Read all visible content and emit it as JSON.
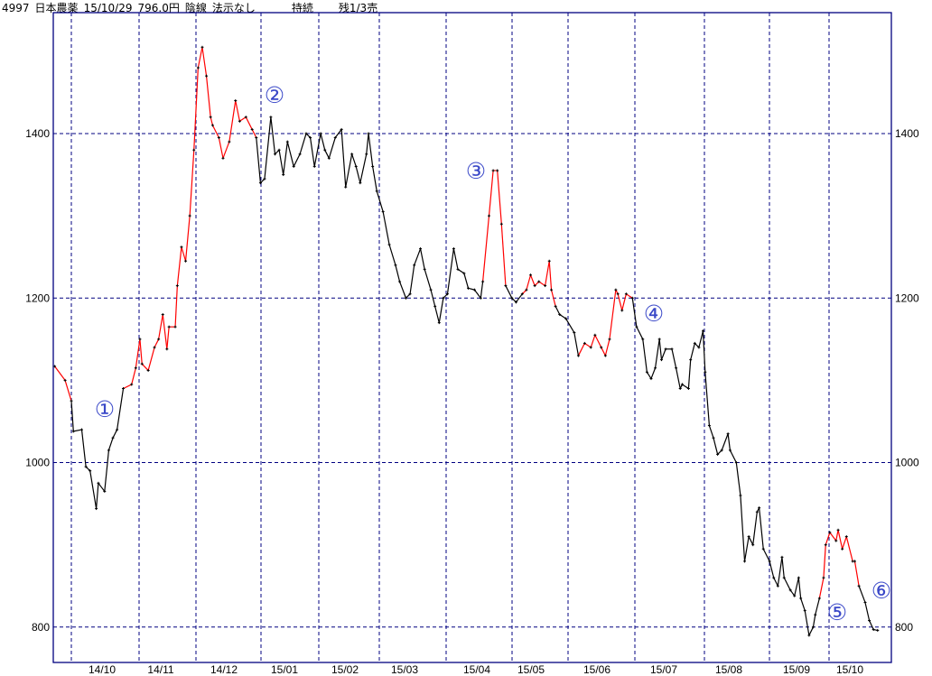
{
  "header": {
    "code": "4997",
    "name": "日本農薬",
    "date": "15/10/29",
    "price": "796.0円",
    "candle": "陰線",
    "disclosure": "法示なし",
    "status": "持続",
    "remaining": "残1/3売"
  },
  "chart_data": {
    "type": "line",
    "title": "",
    "xlabel": "",
    "ylabel": "",
    "ylim": [
      757,
      1547
    ],
    "y_ticks": [
      800,
      1000,
      1200,
      1400
    ],
    "y_axis_sides": "left-and-right",
    "x_tick_labels": [
      "14/10",
      "14/11",
      "14/12",
      "15/01",
      "15/02",
      "15/03",
      "15/04",
      "15/05",
      "15/06",
      "15/07",
      "15/08",
      "15/09",
      "15/10"
    ],
    "grid": true,
    "grid_style": "dashed",
    "colors": {
      "frame": "#000080",
      "grid": "#000080",
      "line": "#000000",
      "highlight": "#ff0000",
      "annotation": "#3a48c8"
    },
    "highlight_ranges": [
      [
        "2014-09-23",
        "2014-10-01"
      ],
      [
        "2014-10-26",
        "2014-12-29"
      ],
      [
        "2015-04-17",
        "2015-04-28"
      ],
      [
        "2015-05-06",
        "2015-05-22"
      ],
      [
        "2015-06-02",
        "2015-06-28"
      ],
      [
        "2015-09-26",
        "2015-10-15"
      ]
    ],
    "annotations": [
      "①",
      "②",
      "③",
      "④",
      "⑤",
      "⑥"
    ],
    "points": [
      [
        "2014-09-23",
        1117
      ],
      [
        "2014-09-28",
        1100
      ],
      [
        "2014-10-01",
        1075
      ],
      [
        "2014-10-02",
        1038
      ],
      [
        "2014-10-06",
        1040
      ],
      [
        "2014-10-08",
        995
      ],
      [
        "2014-10-10",
        990
      ],
      [
        "2014-10-13",
        944
      ],
      [
        "2014-10-14",
        975
      ],
      [
        "2014-10-17",
        965
      ],
      [
        "2014-10-19",
        1015
      ],
      [
        "2014-10-21",
        1030
      ],
      [
        "2014-10-23",
        1040
      ],
      [
        "2014-10-26",
        1090
      ],
      [
        "2014-10-30",
        1095
      ],
      [
        "2014-11-01",
        1115
      ],
      [
        "2014-11-03",
        1150
      ],
      [
        "2014-11-04",
        1120
      ],
      [
        "2014-11-07",
        1112
      ],
      [
        "2014-11-10",
        1140
      ],
      [
        "2014-11-12",
        1150
      ],
      [
        "2014-11-14",
        1180
      ],
      [
        "2014-11-16",
        1138
      ],
      [
        "2014-11-17",
        1165
      ],
      [
        "2014-11-20",
        1165
      ],
      [
        "2014-11-21",
        1215
      ],
      [
        "2014-11-23",
        1262
      ],
      [
        "2014-11-25",
        1245
      ],
      [
        "2014-11-27",
        1300
      ],
      [
        "2014-11-29",
        1380
      ],
      [
        "2014-12-01",
        1480
      ],
      [
        "2014-12-03",
        1505
      ],
      [
        "2014-12-05",
        1470
      ],
      [
        "2014-12-07",
        1420
      ],
      [
        "2014-12-08",
        1410
      ],
      [
        "2014-12-11",
        1395
      ],
      [
        "2014-12-13",
        1370
      ],
      [
        "2014-12-16",
        1390
      ],
      [
        "2014-12-19",
        1440
      ],
      [
        "2014-12-21",
        1415
      ],
      [
        "2014-12-24",
        1420
      ],
      [
        "2014-12-27",
        1405
      ],
      [
        "2014-12-29",
        1395
      ],
      [
        "2014-12-31",
        1340
      ],
      [
        "2015-01-02",
        1345
      ],
      [
        "2015-01-05",
        1420
      ],
      [
        "2015-01-07",
        1375
      ],
      [
        "2015-01-09",
        1380
      ],
      [
        "2015-01-11",
        1350
      ],
      [
        "2015-01-13",
        1390
      ],
      [
        "2015-01-16",
        1360
      ],
      [
        "2015-01-19",
        1375
      ],
      [
        "2015-01-22",
        1400
      ],
      [
        "2015-01-24",
        1395
      ],
      [
        "2015-01-26",
        1360
      ],
      [
        "2015-01-29",
        1400
      ],
      [
        "2015-01-31",
        1380
      ],
      [
        "2015-02-02",
        1370
      ],
      [
        "2015-02-05",
        1395
      ],
      [
        "2015-02-08",
        1405
      ],
      [
        "2015-02-10",
        1335
      ],
      [
        "2015-02-13",
        1375
      ],
      [
        "2015-02-15",
        1360
      ],
      [
        "2015-02-17",
        1340
      ],
      [
        "2015-02-20",
        1375
      ],
      [
        "2015-02-21",
        1400
      ],
      [
        "2015-02-23",
        1360
      ],
      [
        "2015-02-25",
        1330
      ],
      [
        "2015-02-28",
        1305
      ],
      [
        "2015-03-03",
        1265
      ],
      [
        "2015-03-06",
        1240
      ],
      [
        "2015-03-08",
        1220
      ],
      [
        "2015-03-11",
        1200
      ],
      [
        "2015-03-13",
        1205
      ],
      [
        "2015-03-15",
        1240
      ],
      [
        "2015-03-18",
        1260
      ],
      [
        "2015-03-20",
        1235
      ],
      [
        "2015-03-23",
        1210
      ],
      [
        "2015-03-25",
        1190
      ],
      [
        "2015-03-27",
        1170
      ],
      [
        "2015-03-29",
        1200
      ],
      [
        "2015-03-31",
        1205
      ],
      [
        "2015-04-03",
        1260
      ],
      [
        "2015-04-05",
        1235
      ],
      [
        "2015-04-08",
        1230
      ],
      [
        "2015-04-10",
        1212
      ],
      [
        "2015-04-13",
        1210
      ],
      [
        "2015-04-16",
        1200
      ],
      [
        "2015-04-17",
        1220
      ],
      [
        "2015-04-20",
        1300
      ],
      [
        "2015-04-22",
        1355
      ],
      [
        "2015-04-24",
        1355
      ],
      [
        "2015-04-26",
        1290
      ],
      [
        "2015-04-28",
        1215
      ],
      [
        "2015-05-01",
        1200
      ],
      [
        "2015-05-03",
        1195
      ],
      [
        "2015-05-06",
        1205
      ],
      [
        "2015-05-08",
        1210
      ],
      [
        "2015-05-10",
        1228
      ],
      [
        "2015-05-12",
        1215
      ],
      [
        "2015-05-14",
        1220
      ],
      [
        "2015-05-17",
        1215
      ],
      [
        "2015-05-19",
        1245
      ],
      [
        "2015-05-20",
        1210
      ],
      [
        "2015-05-22",
        1190
      ],
      [
        "2015-05-24",
        1180
      ],
      [
        "2015-05-27",
        1175
      ],
      [
        "2015-05-31",
        1158
      ],
      [
        "2015-06-02",
        1130
      ],
      [
        "2015-06-05",
        1145
      ],
      [
        "2015-06-08",
        1140
      ],
      [
        "2015-06-10",
        1155
      ],
      [
        "2015-06-13",
        1140
      ],
      [
        "2015-06-15",
        1130
      ],
      [
        "2015-06-17",
        1150
      ],
      [
        "2015-06-20",
        1210
      ],
      [
        "2015-06-21",
        1205
      ],
      [
        "2015-06-23",
        1185
      ],
      [
        "2015-06-25",
        1205
      ],
      [
        "2015-06-28",
        1200
      ],
      [
        "2015-06-30",
        1165
      ],
      [
        "2015-07-03",
        1150
      ],
      [
        "2015-07-05",
        1110
      ],
      [
        "2015-07-07",
        1102
      ],
      [
        "2015-07-09",
        1115
      ],
      [
        "2015-07-11",
        1150
      ],
      [
        "2015-07-12",
        1125
      ],
      [
        "2015-07-14",
        1138
      ],
      [
        "2015-07-17",
        1138
      ],
      [
        "2015-07-19",
        1115
      ],
      [
        "2015-07-21",
        1090
      ],
      [
        "2015-07-22",
        1095
      ],
      [
        "2015-07-25",
        1090
      ],
      [
        "2015-07-26",
        1125
      ],
      [
        "2015-07-28",
        1145
      ],
      [
        "2015-07-30",
        1140
      ],
      [
        "2015-08-01",
        1160
      ],
      [
        "2015-08-02",
        1110
      ],
      [
        "2015-08-04",
        1045
      ],
      [
        "2015-08-06",
        1030
      ],
      [
        "2015-08-08",
        1010
      ],
      [
        "2015-08-10",
        1015
      ],
      [
        "2015-08-13",
        1035
      ],
      [
        "2015-08-14",
        1015
      ],
      [
        "2015-08-17",
        1000
      ],
      [
        "2015-08-19",
        960
      ],
      [
        "2015-08-21",
        880
      ],
      [
        "2015-08-23",
        910
      ],
      [
        "2015-08-25",
        900
      ],
      [
        "2015-08-27",
        940
      ],
      [
        "2015-08-28",
        945
      ],
      [
        "2015-08-30",
        895
      ],
      [
        "2015-09-02",
        880
      ],
      [
        "2015-09-04",
        860
      ],
      [
        "2015-09-06",
        850
      ],
      [
        "2015-09-08",
        885
      ],
      [
        "2015-09-09",
        860
      ],
      [
        "2015-09-12",
        845
      ],
      [
        "2015-09-14",
        838
      ],
      [
        "2015-09-16",
        860
      ],
      [
        "2015-09-17",
        835
      ],
      [
        "2015-09-19",
        820
      ],
      [
        "2015-09-21",
        790
      ],
      [
        "2015-09-23",
        800
      ],
      [
        "2015-09-24",
        815
      ],
      [
        "2015-09-26",
        835
      ],
      [
        "2015-09-28",
        860
      ],
      [
        "2015-09-29",
        900
      ],
      [
        "2015-10-01",
        915
      ],
      [
        "2015-10-04",
        905
      ],
      [
        "2015-10-05",
        918
      ],
      [
        "2015-10-07",
        895
      ],
      [
        "2015-10-09",
        910
      ],
      [
        "2015-10-12",
        880
      ],
      [
        "2015-10-13",
        880
      ],
      [
        "2015-10-15",
        850
      ],
      [
        "2015-10-18",
        830
      ],
      [
        "2015-10-20",
        808
      ],
      [
        "2015-10-22",
        797
      ],
      [
        "2015-10-24",
        796
      ]
    ]
  }
}
